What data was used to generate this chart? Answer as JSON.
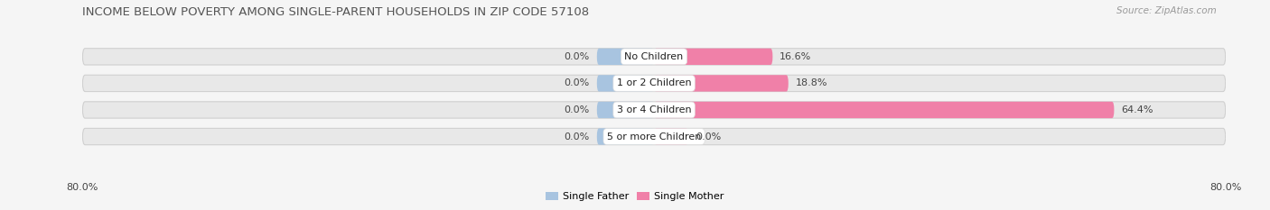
{
  "title": "INCOME BELOW POVERTY AMONG SINGLE-PARENT HOUSEHOLDS IN ZIP CODE 57108",
  "source": "Source: ZipAtlas.com",
  "categories": [
    "No Children",
    "1 or 2 Children",
    "3 or 4 Children",
    "5 or more Children"
  ],
  "single_father": [
    0.0,
    0.0,
    0.0,
    0.0
  ],
  "single_mother": [
    16.6,
    18.8,
    64.4,
    0.0
  ],
  "father_color": "#a8c4e0",
  "mother_color": "#f080a8",
  "bar_bg_color": "#e8e8e8",
  "bar_bg_edge_color": "#d0d0d0",
  "xlim": 80.0,
  "min_stub": 8.0,
  "title_fontsize": 9.5,
  "source_fontsize": 7.5,
  "label_fontsize": 8,
  "category_fontsize": 8,
  "bar_height": 0.62,
  "background_color": "#f5f5f5",
  "axes_bg_color": "#f5f5f5",
  "legend_labels": [
    "Single Father",
    "Single Mother"
  ]
}
